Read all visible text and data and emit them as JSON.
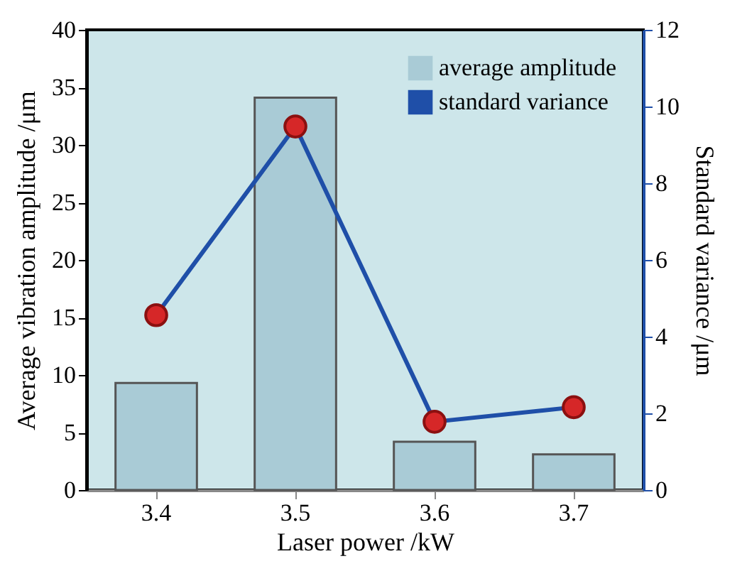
{
  "chart_data": {
    "type": "bar",
    "categories": [
      "3.4",
      "3.5",
      "3.6",
      "3.7"
    ],
    "xlabel": "Laser power /kW",
    "ylabel": "Average  vibration amplitude /μm",
    "y2label": "Standard variance /μm",
    "series": [
      {
        "name": "average amplitude",
        "color": "#a9cbd6",
        "values": [
          9.3,
          34.1,
          4.2,
          3.1
        ]
      },
      {
        "name": "standard variance",
        "type": "line",
        "axis": "y2",
        "color": "#1f4fa8",
        "values": [
          4.56,
          9.48,
          1.78,
          2.16
        ]
      }
    ],
    "ylim": [
      0,
      40
    ],
    "yticks": [
      0,
      5,
      10,
      15,
      20,
      25,
      30,
      35,
      40
    ],
    "y2lim": [
      0,
      12
    ],
    "y2ticks": [
      0,
      2,
      4,
      6,
      8,
      10,
      12
    ],
    "legend": "top right",
    "marker": "circle",
    "grid": false
  }
}
